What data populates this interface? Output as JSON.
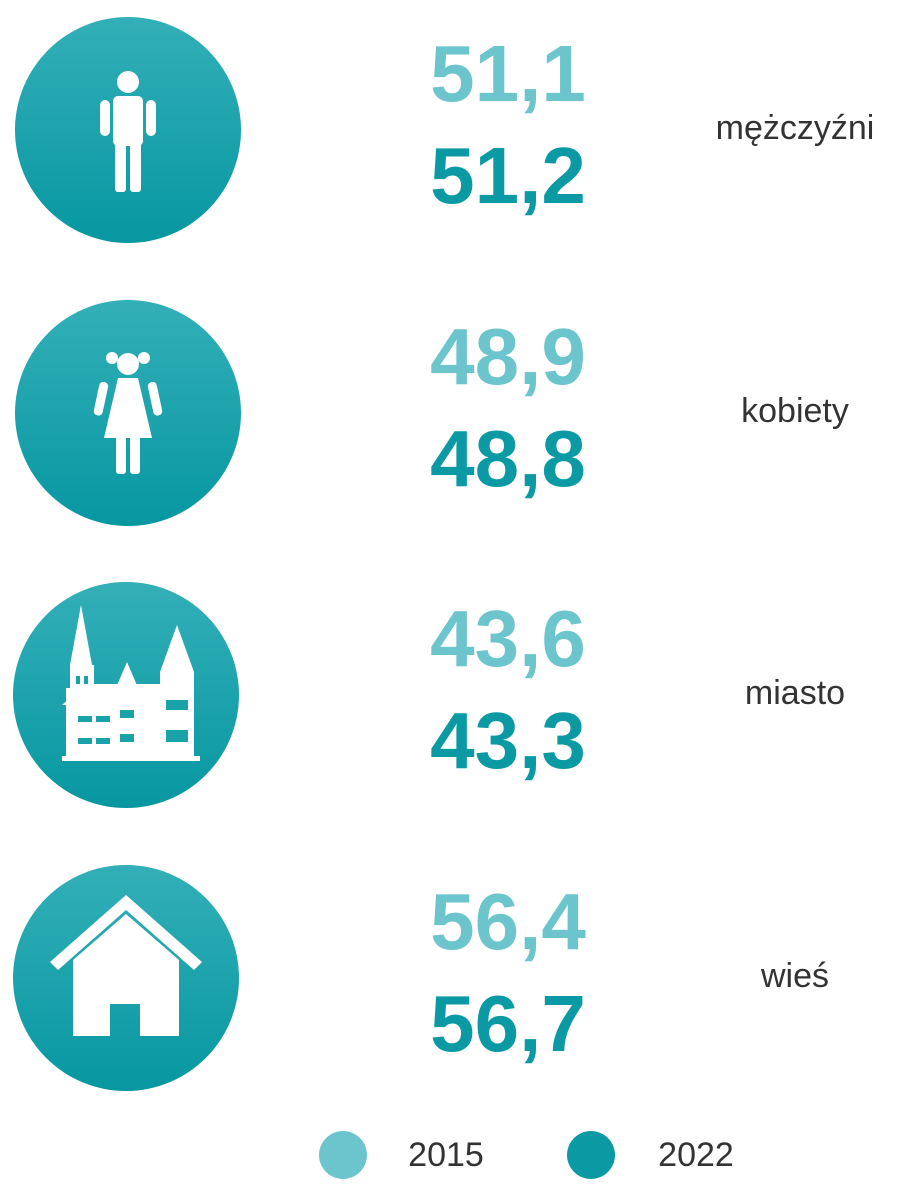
{
  "rows": [
    {
      "label": "mężczyźni",
      "values": [
        "51,1",
        "51,2"
      ]
    },
    {
      "label": "kobiety",
      "values": [
        "48,9",
        "48,8"
      ]
    },
    {
      "label": "miasto",
      "values": [
        "43,6",
        "43,3"
      ]
    },
    {
      "label": "wieś",
      "values": [
        "56,4",
        "56,7"
      ]
    }
  ],
  "legend": [
    {
      "name": "2015",
      "color": "#6cc4cc"
    },
    {
      "name": "2022",
      "color": "#0b9aa4"
    }
  ]
}
